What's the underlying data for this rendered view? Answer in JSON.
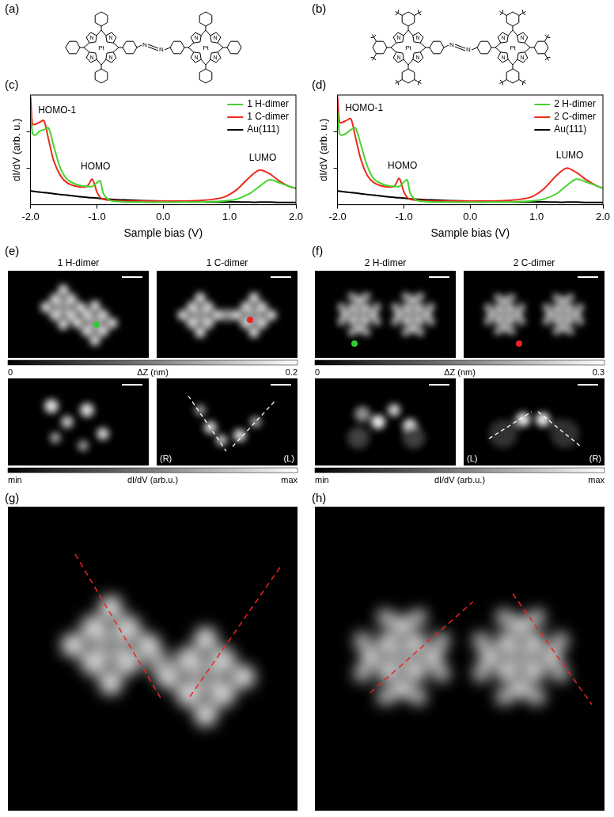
{
  "structures": [
    {
      "label": "(a)",
      "atoms": {
        "metal": "Pt",
        "ring": [
          "N",
          "N",
          "N",
          "N"
        ],
        "linker": [
          "N",
          "N"
        ]
      }
    },
    {
      "label": "(b)",
      "atoms": {
        "metal": "Pt",
        "ring": [
          "N",
          "N",
          "N",
          "N"
        ],
        "linker": [
          "N",
          "N"
        ]
      }
    }
  ],
  "chart_data": [
    {
      "type": "line",
      "panel_label": "(c)",
      "x_label": "Sample bias (V)",
      "y_label": "dI/dV (arb. u.)",
      "x": [
        -2,
        -1.97,
        -1.93,
        -1.87,
        -1.8,
        -1.73,
        -1.65,
        -1.55,
        -1.45,
        -1.3,
        -1.15,
        -1.07,
        -1.0,
        -0.95,
        -0.9,
        -0.8,
        -0.6,
        -0.3,
        0,
        0.3,
        0.6,
        0.9,
        1.1,
        1.3,
        1.45,
        1.6,
        1.75,
        1.9,
        2.0
      ],
      "series": [
        {
          "name": "1 H-dimer",
          "color": "#44d42c",
          "values": [
            2.6,
            1.95,
            1.9,
            2.0,
            2.05,
            2.1,
            1.6,
            1.0,
            0.7,
            0.55,
            0.5,
            0.5,
            0.6,
            0.65,
            0.3,
            0.12,
            0.08,
            0.07,
            0.07,
            0.07,
            0.08,
            0.1,
            0.15,
            0.3,
            0.5,
            0.68,
            0.6,
            0.5,
            0.45
          ]
        },
        {
          "name": "1 C-dimer",
          "color": "#ee2a1e",
          "values": [
            2.95,
            2.2,
            2.2,
            2.25,
            2.3,
            1.8,
            1.2,
            0.8,
            0.6,
            0.5,
            0.5,
            0.7,
            0.35,
            0.2,
            0.15,
            0.12,
            0.1,
            0.1,
            0.1,
            0.1,
            0.12,
            0.2,
            0.4,
            0.75,
            0.95,
            0.85,
            0.65,
            0.5,
            0.45
          ]
        },
        {
          "name": "Au(111)",
          "color": "#000000",
          "values": [
            0.38,
            0.37,
            0.36,
            0.35,
            0.33,
            0.32,
            0.3,
            0.28,
            0.26,
            0.23,
            0.2,
            0.19,
            0.18,
            0.17,
            0.16,
            0.15,
            0.13,
            0.11,
            0.1,
            0.09,
            0.08,
            0.08,
            0.08,
            0.07,
            0.07,
            0.07,
            0.06,
            0.06,
            0.06
          ]
        }
      ],
      "xlim": [
        -2,
        2
      ],
      "xticks": [
        {
          "value": -2,
          "label": "-2.0"
        },
        {
          "value": -1,
          "label": "-1.0"
        },
        {
          "value": 0,
          "label": "0.0"
        },
        {
          "value": 1,
          "label": "1.0"
        },
        {
          "value": 2,
          "label": "2.0"
        }
      ],
      "ylim": [
        0,
        3
      ],
      "yticks": [
        1,
        2
      ],
      "tick_labels": "x",
      "grid": false,
      "legend": "upper right",
      "annotations": [
        {
          "text": "HOMO-1",
          "x": -1.6,
          "y": 2.45
        },
        {
          "text": "HOMO",
          "x": -1.02,
          "y": 0.9
        },
        {
          "text": "LUMO",
          "x": 1.5,
          "y": 1.15
        }
      ]
    },
    {
      "type": "line",
      "panel_label": "(d)",
      "x_label": "Sample bias (V)",
      "y_label": "dI/dV (arb. u.)",
      "x": [
        -2,
        -1.97,
        -1.93,
        -1.87,
        -1.8,
        -1.73,
        -1.65,
        -1.55,
        -1.45,
        -1.3,
        -1.15,
        -1.07,
        -1.0,
        -0.95,
        -0.9,
        -0.8,
        -0.6,
        -0.3,
        0,
        0.3,
        0.6,
        0.9,
        1.1,
        1.3,
        1.45,
        1.6,
        1.75,
        1.9,
        2.0
      ],
      "series": [
        {
          "name": "2 H-dimer",
          "color": "#44d42c",
          "values": [
            2.55,
            1.95,
            1.9,
            1.95,
            2.05,
            2.1,
            1.65,
            1.05,
            0.7,
            0.55,
            0.5,
            0.5,
            0.62,
            0.68,
            0.3,
            0.12,
            0.08,
            0.07,
            0.07,
            0.07,
            0.08,
            0.1,
            0.15,
            0.3,
            0.52,
            0.7,
            0.62,
            0.52,
            0.45
          ]
        },
        {
          "name": "2 C-dimer",
          "color": "#ee2a1e",
          "values": [
            2.95,
            2.25,
            2.25,
            2.3,
            2.35,
            1.85,
            1.25,
            0.8,
            0.6,
            0.5,
            0.5,
            0.72,
            0.35,
            0.2,
            0.15,
            0.12,
            0.1,
            0.1,
            0.1,
            0.1,
            0.12,
            0.2,
            0.42,
            0.8,
            1.0,
            0.88,
            0.68,
            0.52,
            0.45
          ]
        },
        {
          "name": "Au(111)",
          "color": "#000000",
          "values": [
            0.38,
            0.37,
            0.36,
            0.35,
            0.33,
            0.32,
            0.3,
            0.28,
            0.26,
            0.23,
            0.2,
            0.19,
            0.18,
            0.17,
            0.16,
            0.15,
            0.13,
            0.11,
            0.1,
            0.09,
            0.08,
            0.08,
            0.08,
            0.07,
            0.07,
            0.07,
            0.06,
            0.06,
            0.06
          ]
        }
      ],
      "xlim": [
        -2,
        2
      ],
      "xticks": [
        {
          "value": -2,
          "label": "-2.0"
        },
        {
          "value": -1,
          "label": "-1.0"
        },
        {
          "value": 0,
          "label": "0.0"
        },
        {
          "value": 1,
          "label": "1.0"
        },
        {
          "value": 2,
          "label": "2.0"
        }
      ],
      "ylim": [
        0,
        3
      ],
      "yticks": [
        1,
        2
      ],
      "tick_labels": "x",
      "grid": false,
      "legend": "upper right",
      "annotations": [
        {
          "text": "HOMO-1",
          "x": -1.6,
          "y": 2.5
        },
        {
          "text": "HOMO",
          "x": -1.02,
          "y": 0.92
        },
        {
          "text": "LUMO",
          "x": 1.5,
          "y": 1.2
        }
      ]
    }
  ],
  "images": [
    {
      "label": "(e)",
      "titles": [
        "1 H-dimer",
        "1 C-dimer"
      ],
      "topography_scale": {
        "title": "ΔZ (nm)",
        "range": [
          0,
          0.2
        ]
      },
      "map_scale": {
        "title": "dI/dV (arb.u.)",
        "labels": [
          "min",
          "max"
        ]
      },
      "map_marks": [
        "(R)",
        "(L)"
      ]
    },
    {
      "label": "(f)",
      "titles": [
        "2 H-dimer",
        "2 C-dimer"
      ],
      "topography_scale": {
        "title": "ΔZ (nm)",
        "range": [
          0,
          0.3
        ]
      },
      "map_scale": {
        "title": "dI/dV (arb.u.)",
        "labels": [
          "min",
          "max"
        ]
      },
      "map_marks": [
        "(L)",
        "(R)"
      ]
    }
  ],
  "large_images": [
    {
      "label": "(g)"
    },
    {
      "label": "(h)"
    }
  ]
}
